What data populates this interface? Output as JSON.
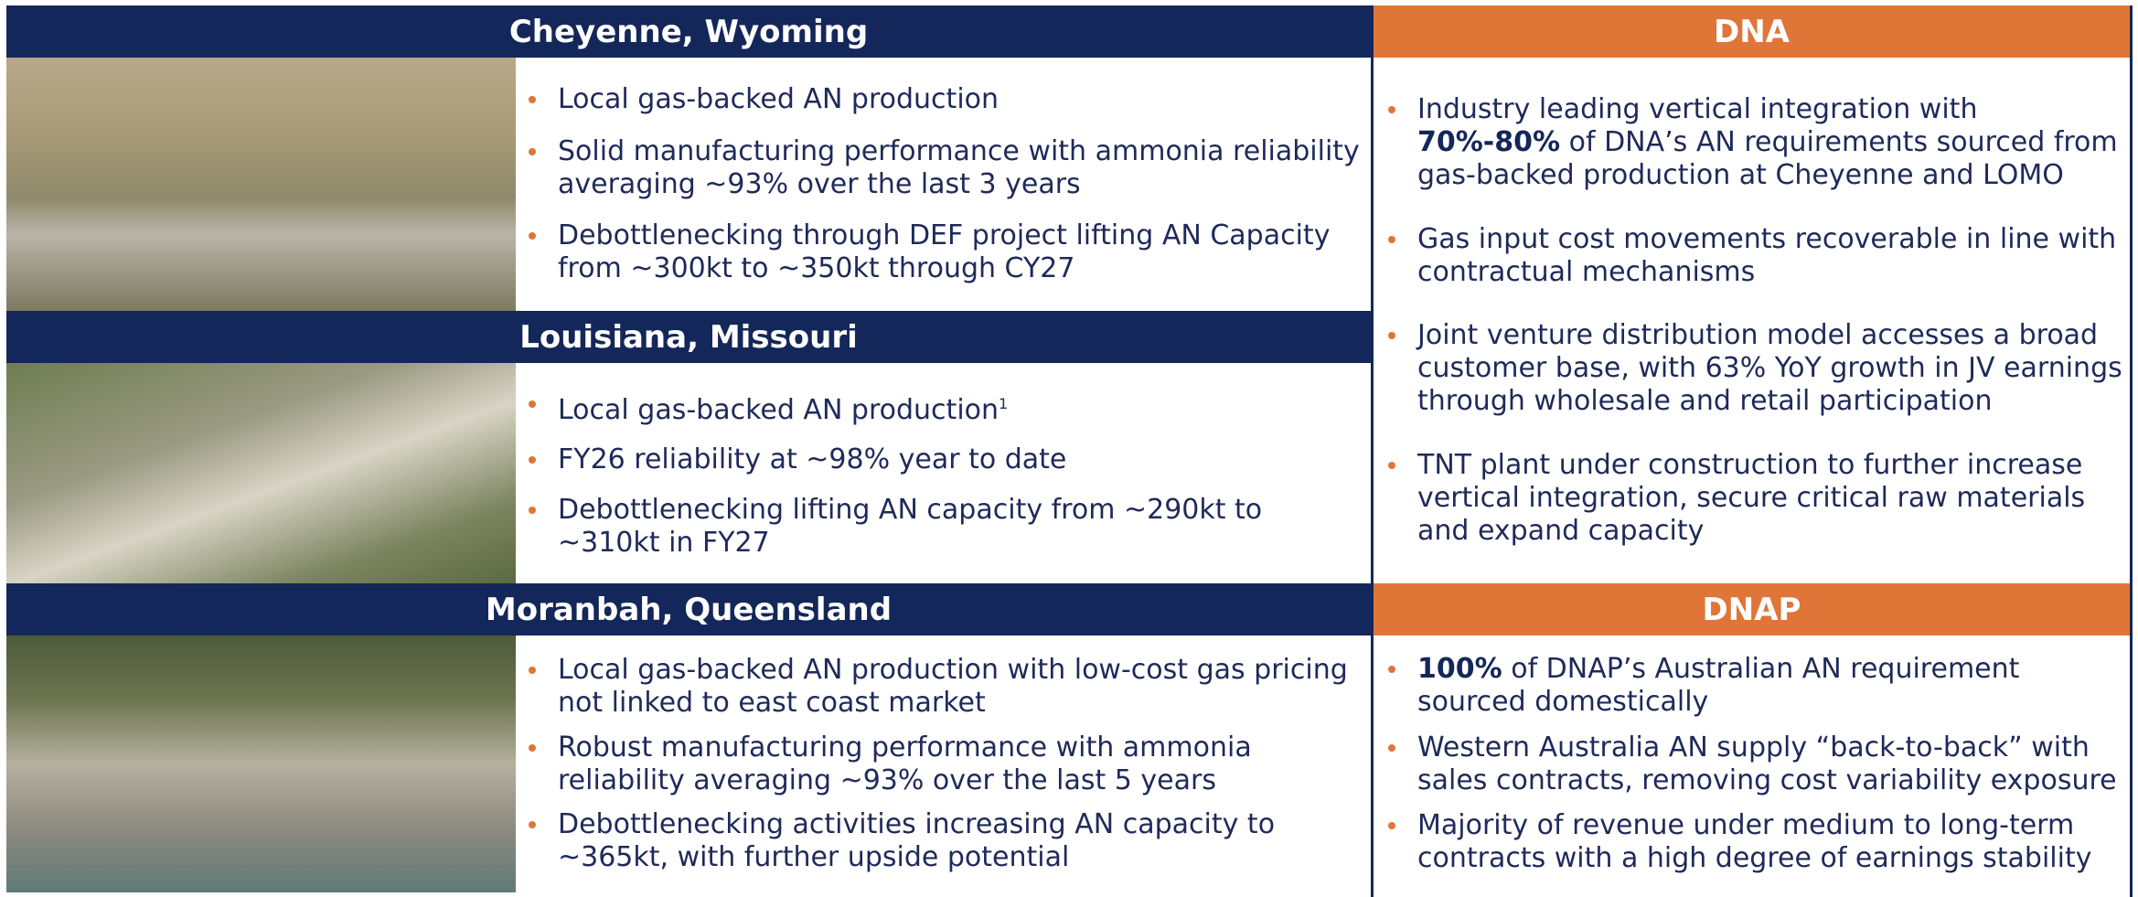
{
  "sites": [
    {
      "title": "Cheyenne, Wyoming",
      "bullets": [
        [
          {
            "text": "Local gas-backed AN production"
          }
        ],
        [
          {
            "text": "Solid manufacturing performance with ammonia reliability averaging ~93% over the last 3 years"
          }
        ],
        [
          {
            "text": "Debottlenecking through DEF project lifting AN Capacity from ~300kt to ~350kt through CY27"
          }
        ]
      ]
    },
    {
      "title": "Louisiana, Missouri",
      "bullets": [
        [
          {
            "text": "Local gas-backed AN production"
          },
          {
            "text": "1",
            "sup": true
          }
        ],
        [
          {
            "text": "FY26 reliability at ~98% year to date"
          }
        ],
        [
          {
            "text": "Debottlenecking lifting AN capacity from ~290kt to ~310kt in FY27"
          }
        ]
      ]
    },
    {
      "title": "Moranbah, Queensland",
      "bullets": [
        [
          {
            "text": "Local gas-backed AN production with low-cost gas pricing not linked to east coast market"
          }
        ],
        [
          {
            "text": "Robust manufacturing performance with ammonia reliability averaging ~93% over the last 5 years"
          }
        ],
        [
          {
            "text": "Debottlenecking activities increasing AN capacity to ~365kt, with further upside potential"
          }
        ]
      ]
    }
  ],
  "regions": [
    {
      "title": "DNA",
      "bullets": [
        [
          {
            "text": "Industry leading vertical integration with "
          },
          {
            "text": "70%-80%",
            "bold": true
          },
          {
            "text": " of DNA’s AN requirements sourced from gas-backed production at Cheyenne and LOMO"
          }
        ],
        [
          {
            "text": "Gas input cost movements recoverable in line with contractual mechanisms"
          }
        ],
        [
          {
            "text": "Joint venture distribution model accesses a broad customer base, with 63% YoY growth in JV earnings through wholesale and retail participation"
          }
        ],
        [
          {
            "text": "TNT plant under construction to further increase vertical integration, secure critical raw materials and expand capacity"
          }
        ]
      ]
    },
    {
      "title": "DNAP",
      "bullets": [
        [
          {
            "text": "100%",
            "bold": true
          },
          {
            "text": " of DNAP’s Australian AN requirement sourced domestically"
          }
        ],
        [
          {
            "text": "Western Australia AN supply “back-to-back” with sales contracts, removing cost variability exposure"
          }
        ],
        [
          {
            "text": "Majority of revenue under medium to long-term contracts with a high degree of earnings stability"
          }
        ]
      ]
    }
  ]
}
